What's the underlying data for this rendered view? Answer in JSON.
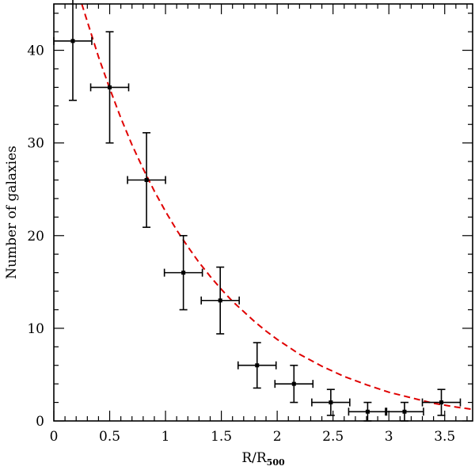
{
  "chart_data": {
    "type": "scatter",
    "xlabel": "R/R",
    "xlabel_subscript": "500",
    "ylabel": "Number of galaxies",
    "xlim": [
      0,
      3.75
    ],
    "ylim": [
      0,
      45
    ],
    "x_ticks": [
      0,
      0.5,
      1,
      1.5,
      2,
      2.5,
      3,
      3.5
    ],
    "x_tick_labels": [
      "0",
      "0.5",
      "1",
      "1.5",
      "2",
      "2.5",
      "3",
      "3.5"
    ],
    "y_ticks": [
      0,
      10,
      20,
      30,
      40
    ],
    "y_tick_labels": [
      "0",
      "10",
      "20",
      "30",
      "40"
    ],
    "grid": false,
    "series": [
      {
        "kind": "points_with_errorbars",
        "color": "#000000",
        "points": [
          {
            "x": 0.17,
            "y": 41,
            "xerr": 0.17,
            "yerr_low": 6.4,
            "yerr_high": 6.4
          },
          {
            "x": 0.5,
            "y": 36,
            "xerr": 0.17,
            "yerr_low": 6.0,
            "yerr_high": 6.0
          },
          {
            "x": 0.83,
            "y": 26,
            "xerr": 0.17,
            "yerr_low": 5.1,
            "yerr_high": 5.1
          },
          {
            "x": 1.16,
            "y": 16,
            "xerr": 0.17,
            "yerr_low": 4.0,
            "yerr_high": 4.0
          },
          {
            "x": 1.49,
            "y": 13,
            "xerr": 0.17,
            "yerr_low": 3.6,
            "yerr_high": 3.6
          },
          {
            "x": 1.82,
            "y": 6,
            "xerr": 0.17,
            "yerr_low": 2.45,
            "yerr_high": 2.45
          },
          {
            "x": 2.15,
            "y": 4,
            "xerr": 0.17,
            "yerr_low": 2.0,
            "yerr_high": 2.0
          },
          {
            "x": 2.48,
            "y": 2,
            "xerr": 0.17,
            "yerr_low": 1.4,
            "yerr_high": 1.4
          },
          {
            "x": 2.81,
            "y": 1,
            "xerr": 0.17,
            "yerr_low": 1.0,
            "yerr_high": 1.0
          },
          {
            "x": 3.14,
            "y": 1,
            "xerr": 0.17,
            "yerr_low": 1.0,
            "yerr_high": 1.0
          },
          {
            "x": 3.47,
            "y": 2,
            "xerr": 0.17,
            "yerr_low": 1.4,
            "yerr_high": 1.4
          }
        ]
      },
      {
        "kind": "fit_curve",
        "color": "#e00000",
        "style": "dashed",
        "x": [
          0.25,
          0.4,
          0.5,
          0.6,
          0.7,
          0.8,
          0.9,
          1.0,
          1.1,
          1.2,
          1.3,
          1.4,
          1.5,
          1.6,
          1.7,
          1.8,
          1.9,
          2.0,
          2.2,
          2.4,
          2.6,
          2.8,
          3.0,
          3.2,
          3.4,
          3.6,
          3.75
        ],
        "y": [
          45.0,
          39.3,
          35.9,
          32.7,
          29.8,
          27.2,
          24.8,
          22.6,
          20.6,
          18.8,
          17.1,
          15.6,
          14.2,
          12.9,
          11.8,
          10.7,
          9.7,
          8.8,
          7.2,
          5.9,
          4.8,
          3.9,
          3.1,
          2.5,
          1.9,
          1.5,
          1.25
        ]
      }
    ]
  }
}
